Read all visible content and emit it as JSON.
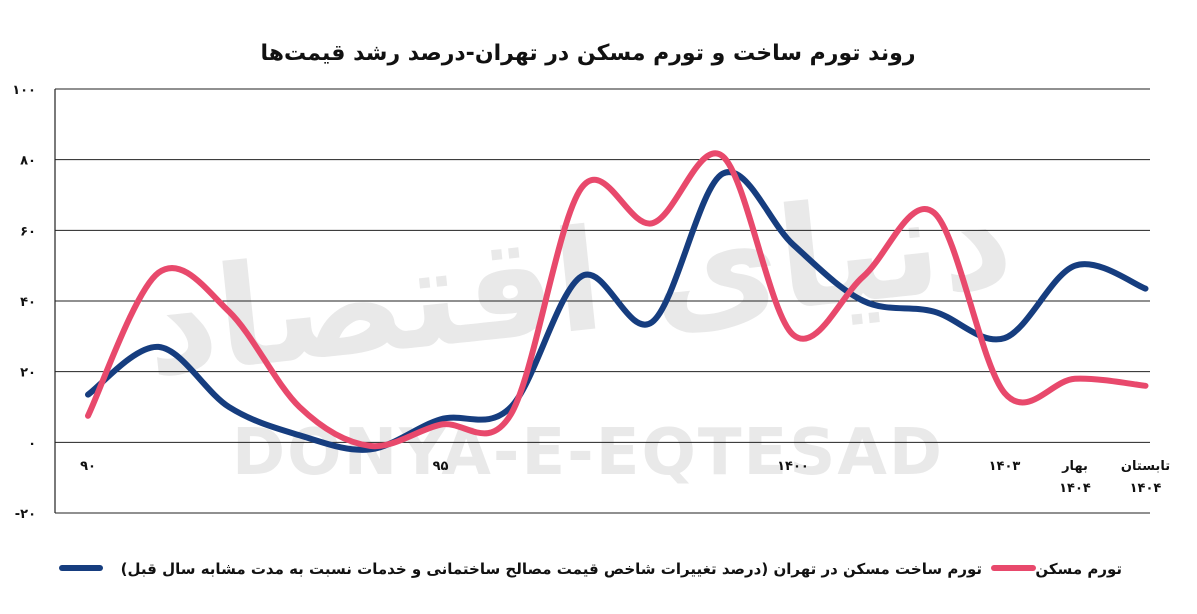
{
  "chart_data": {
    "type": "line",
    "title": "روند تورم ساخت و تورم مسکن در تهران-درصد رشد قیمت‌ها",
    "ylim": [
      -20,
      100
    ],
    "yticks": [
      100,
      80,
      60,
      40,
      20,
      0,
      -20
    ],
    "ytick_labels": [
      "۱۰۰",
      "۸۰",
      "۶۰",
      "۴۰",
      "۲۰",
      "۰",
      "-۲۰"
    ],
    "x": [
      90,
      91,
      92,
      93,
      94,
      95,
      96,
      97,
      98,
      99,
      1400,
      1401,
      1402,
      1403,
      1404,
      1405
    ],
    "xtick_positions": [
      90,
      95,
      1400,
      1403,
      1404,
      1405
    ],
    "xtick_labels": [
      "۹۰",
      "۹۵",
      "۱۴۰۰",
      "۱۴۰۳",
      "بهار\n۱۴۰۴",
      "تابستان\n۱۴۰۴"
    ],
    "grid": true,
    "legend_position": "bottom",
    "series": [
      {
        "name": "تورم ساخت مسکن در تهران (درصد تغییرات شاخص قیمت مصالح ساختمانی و خدمات نسبت به مدت مشابه سال قبل)",
        "color": "#163d7f",
        "values": [
          13.5,
          27,
          10,
          2,
          -2,
          6.5,
          10,
          47,
          34,
          76,
          56,
          40,
          37,
          29.5,
          50,
          43.5
        ]
      },
      {
        "name": "تورم مسکن",
        "color": "#e8496c",
        "values": [
          7.5,
          48,
          37,
          10,
          -1,
          5,
          8,
          72,
          62,
          81,
          30.5,
          47,
          65,
          14,
          18,
          16
        ]
      }
    ]
  },
  "watermark": {
    "fa": "دنیای اقتصاد",
    "en": "DONYA-E-EQTESAD"
  }
}
